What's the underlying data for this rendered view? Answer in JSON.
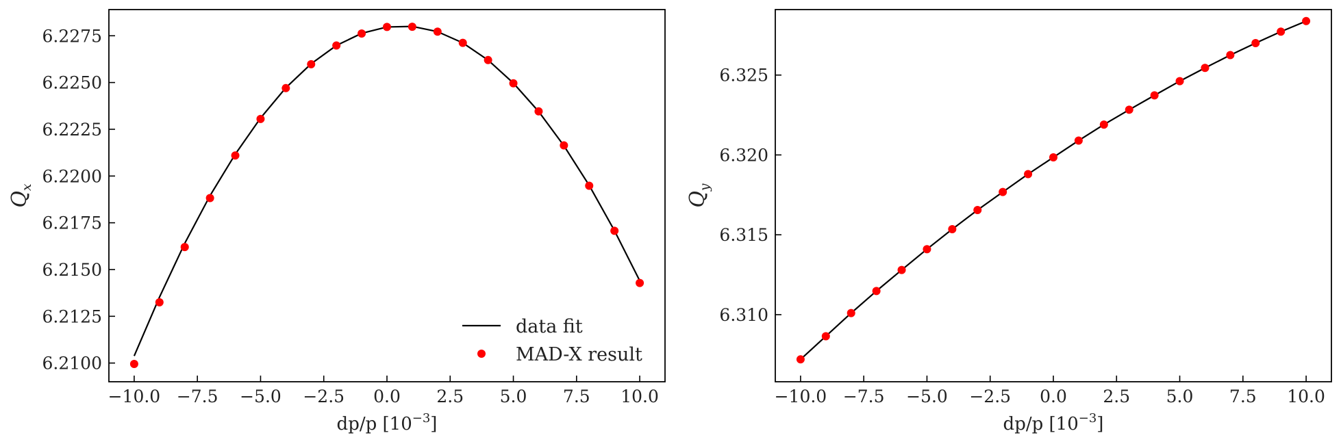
{
  "colors": {
    "fit": "#000000",
    "points": "#ff0000",
    "frame": "#000000",
    "text": "#222222"
  },
  "legend": {
    "placement": "lower-right",
    "fit_label": "data fit",
    "points_label": "MAD-X result"
  },
  "chart_data": [
    {
      "type": "scatter",
      "xlabel_main": "dp/p [10",
      "xlabel_exp": "−3",
      "xlabel_end": "]",
      "ylabel_main": "Q",
      "ylabel_sub": "x",
      "xlim": [
        -11,
        11
      ],
      "ylim": [
        6.209,
        6.2289
      ],
      "xticks": [
        -10,
        -7.5,
        -5,
        -2.5,
        0,
        2.5,
        5,
        7.5,
        10
      ],
      "xtick_labels": [
        "−10.0",
        "−7.5",
        "−5.0",
        "−2.5",
        "0.0",
        "2.5",
        "5.0",
        "7.5",
        "10.0"
      ],
      "yticks": [
        6.21,
        6.2125,
        6.215,
        6.2175,
        6.22,
        6.2225,
        6.225,
        6.2275
      ],
      "ytick_labels": [
        "6.2100",
        "6.2125",
        "6.2150",
        "6.2175",
        "6.2200",
        "6.2225",
        "6.2250",
        "6.2275"
      ],
      "grid": false,
      "legend": true,
      "series": [
        {
          "name": "MAD-X result",
          "kind": "points",
          "x": [
            -10,
            -9,
            -8,
            -7,
            -6,
            -5,
            -4,
            -3,
            -2,
            -1,
            0,
            1,
            2,
            3,
            4,
            5,
            6,
            7,
            8,
            9,
            10
          ],
          "y": [
            6.20995,
            6.21325,
            6.2162,
            6.21882,
            6.2211,
            6.22305,
            6.2247,
            6.22598,
            6.22698,
            6.22762,
            6.22797,
            6.22798,
            6.22772,
            6.22712,
            6.2262,
            6.22496,
            6.22346,
            6.22164,
            6.21948,
            6.21707,
            6.21428
          ]
        },
        {
          "name": "data fit",
          "kind": "line",
          "x": [
            -10,
            -9,
            -8,
            -7,
            -6,
            -5,
            -4,
            -3,
            -2,
            -1,
            0,
            1,
            2,
            3,
            4,
            5,
            6,
            7,
            8,
            9,
            10
          ],
          "y": [
            6.21038,
            6.21352,
            6.2164,
            6.21895,
            6.22117,
            6.2231,
            6.22472,
            6.226,
            6.22698,
            6.22763,
            6.22797,
            6.228,
            6.22772,
            6.22712,
            6.2262,
            6.22497,
            6.22345,
            6.22162,
            6.2195,
            6.21708,
            6.2144
          ]
        }
      ]
    },
    {
      "type": "scatter",
      "xlabel_main": "dp/p [10",
      "xlabel_exp": "−3",
      "xlabel_end": "]",
      "ylabel_main": "Q",
      "ylabel_sub": "y",
      "xlim": [
        -11,
        11
      ],
      "ylim": [
        6.3058,
        6.3291
      ],
      "xticks": [
        -10,
        -7.5,
        -5,
        -2.5,
        0,
        2.5,
        5,
        7.5,
        10
      ],
      "xtick_labels": [
        "−10.0",
        "−7.5",
        "−5.0",
        "−2.5",
        "0.0",
        "2.5",
        "5.0",
        "7.5",
        "10.0"
      ],
      "yticks": [
        6.31,
        6.315,
        6.32,
        6.325
      ],
      "ytick_labels": [
        "6.310",
        "6.315",
        "6.320",
        "6.325"
      ],
      "grid": false,
      "legend": false,
      "series": [
        {
          "name": "MAD-X result",
          "kind": "points",
          "x": [
            -10,
            -9,
            -8,
            -7,
            -6,
            -5,
            -4,
            -3,
            -2,
            -1,
            0,
            1,
            2,
            3,
            4,
            5,
            6,
            7,
            8,
            9,
            10
          ],
          "y": [
            6.3072,
            6.30865,
            6.3101,
            6.31148,
            6.3128,
            6.3141,
            6.31535,
            6.31655,
            6.31768,
            6.3188,
            6.31985,
            6.3209,
            6.3219,
            6.32283,
            6.32373,
            6.32462,
            6.32545,
            6.32625,
            6.327,
            6.32772,
            6.32838
          ]
        },
        {
          "name": "data fit",
          "kind": "line",
          "x": [
            -10,
            -9,
            -8,
            -7,
            -6,
            -5,
            -4,
            -3,
            -2,
            -1,
            0,
            1,
            2,
            3,
            4,
            5,
            6,
            7,
            8,
            9,
            10
          ],
          "y": [
            6.3072,
            6.30865,
            6.3101,
            6.31148,
            6.3128,
            6.3141,
            6.31535,
            6.31655,
            6.31768,
            6.3188,
            6.31985,
            6.3209,
            6.3219,
            6.32283,
            6.32373,
            6.32462,
            6.32545,
            6.32625,
            6.327,
            6.32772,
            6.32838
          ]
        }
      ]
    }
  ]
}
